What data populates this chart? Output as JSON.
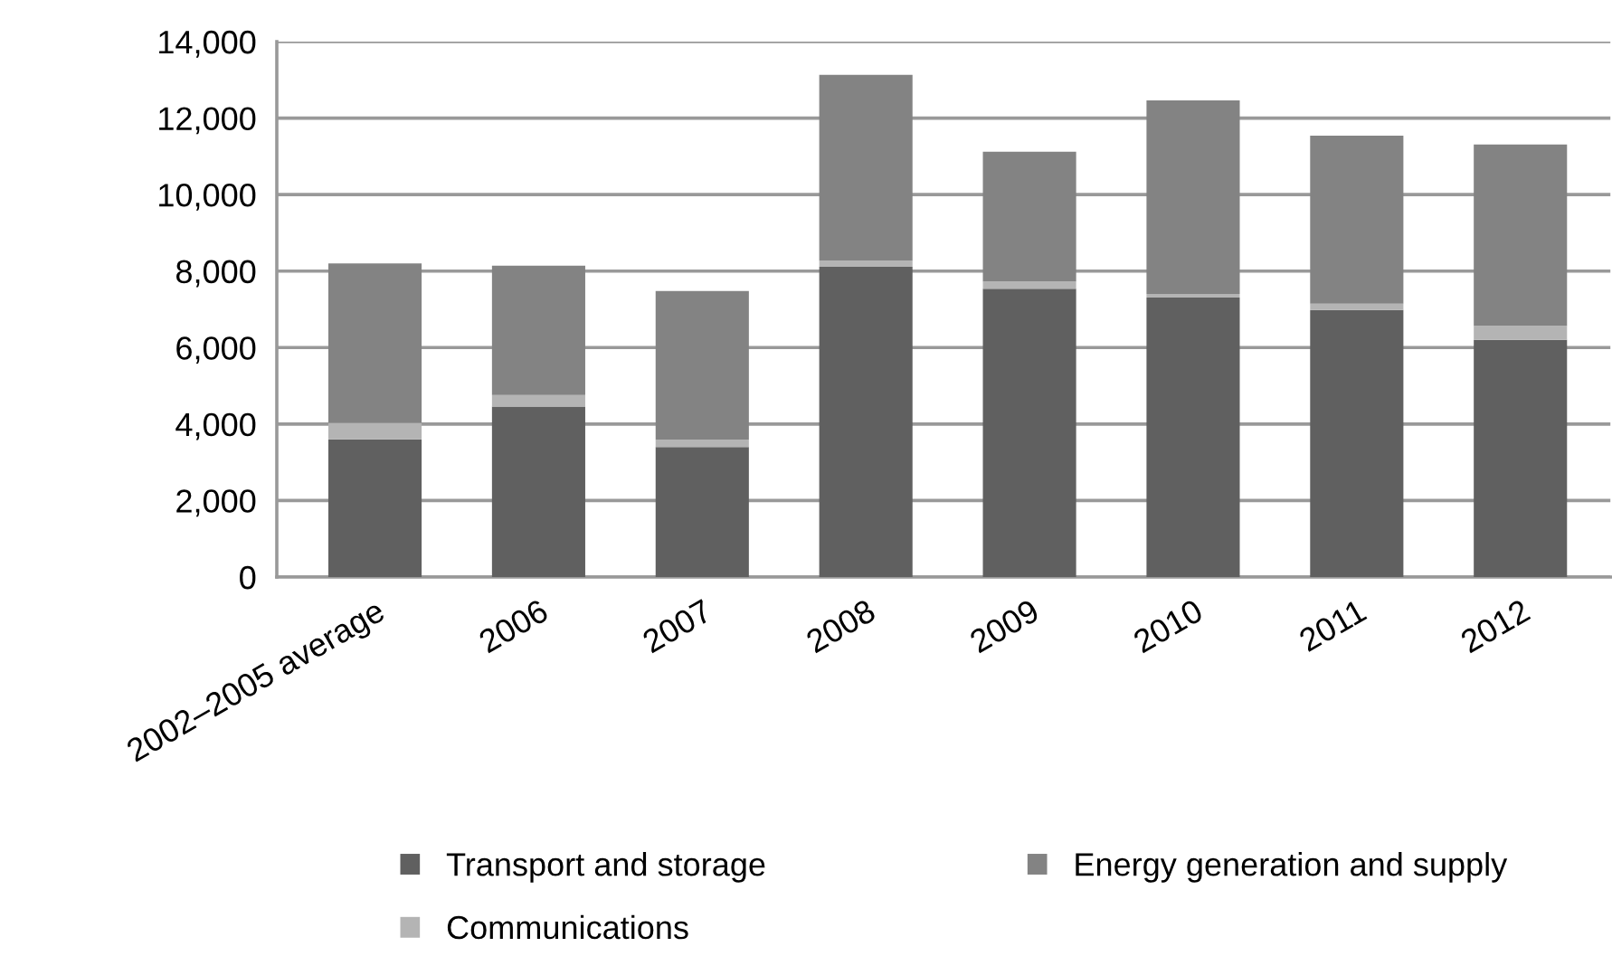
{
  "chart_data": {
    "type": "bar",
    "stacked": true,
    "categories": [
      "2002–2005 average",
      "2006",
      "2007",
      "2008",
      "2009",
      "2010",
      "2011",
      "2012"
    ],
    "series": [
      {
        "name": "Transport and storage",
        "color": "#606060",
        "values": [
          3600,
          4460,
          3400,
          8110,
          7540,
          7310,
          6980,
          6200
        ]
      },
      {
        "name": "Communications",
        "color": "#b4b4b4",
        "values": [
          430,
          300,
          190,
          160,
          190,
          90,
          170,
          370
        ]
      },
      {
        "name": "Energy generation and supply",
        "color": "#838383",
        "values": [
          4170,
          3380,
          3890,
          4860,
          3390,
          5060,
          4390,
          4740
        ]
      }
    ],
    "ylim": [
      0,
      14000
    ],
    "yticks": [
      {
        "value": 0,
        "label": "0"
      },
      {
        "value": 2000,
        "label": "2,000"
      },
      {
        "value": 4000,
        "label": "4,000"
      },
      {
        "value": 6000,
        "label": "6,000"
      },
      {
        "value": 8000,
        "label": "8,000"
      },
      {
        "value": 10000,
        "label": "10,000"
      },
      {
        "value": 12000,
        "label": "12,000"
      },
      {
        "value": 14000,
        "label": "14,000"
      }
    ],
    "grid": "y",
    "legend": "bottom"
  }
}
